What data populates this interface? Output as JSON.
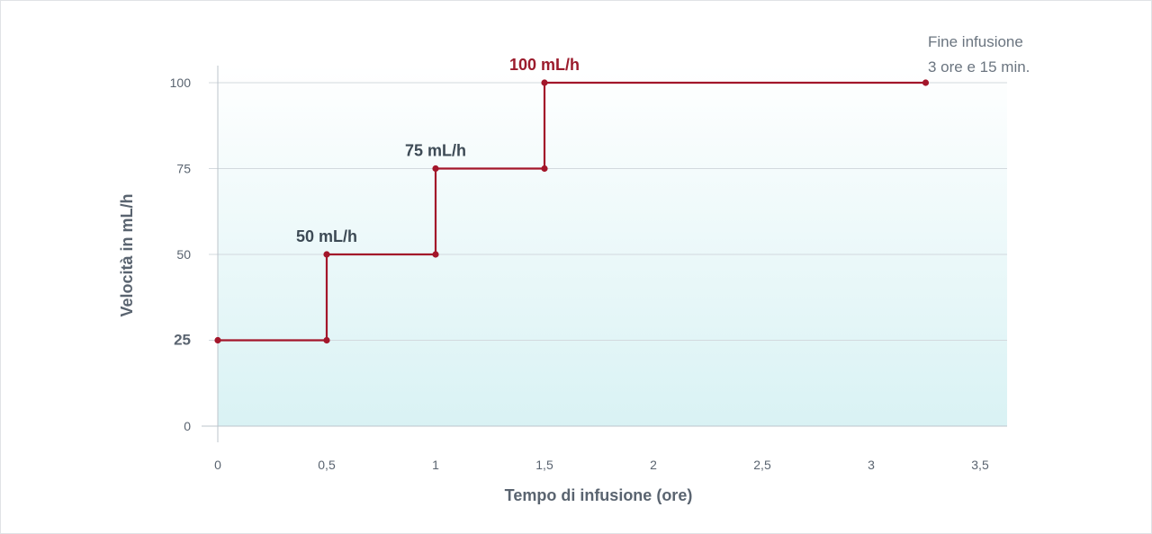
{
  "chart_data": {
    "type": "line",
    "step": true,
    "xlabel": "Tempo di infusione (ore)",
    "ylabel": "Velocità in mL/h",
    "xlim": [
      0,
      3.6
    ],
    "ylim": [
      0,
      100
    ],
    "x_ticks": [
      "0",
      "0,5",
      "1",
      "1,5",
      "2",
      "2,5",
      "3",
      "3,5"
    ],
    "x_tick_values": [
      0,
      0.5,
      1,
      1.5,
      2,
      2.5,
      3,
      3.5
    ],
    "y_ticks": [
      "0",
      "25",
      "50",
      "75",
      "100"
    ],
    "y_tick_values": [
      0,
      25,
      50,
      75,
      100
    ],
    "y_tick_emphasis": "25",
    "grid": "horizontal",
    "series": [
      {
        "points": [
          {
            "x": 0,
            "y": 25
          },
          {
            "x": 0.5,
            "y": 25
          },
          {
            "x": 0.5,
            "y": 50
          },
          {
            "x": 1,
            "y": 50
          },
          {
            "x": 1,
            "y": 75
          },
          {
            "x": 1.5,
            "y": 75
          },
          {
            "x": 1.5,
            "y": 100
          },
          {
            "x": 3.25,
            "y": 100
          }
        ],
        "color": "#a3162a"
      }
    ],
    "annotations": [
      {
        "text": "50 mL/h",
        "x": 0.5,
        "y": 50,
        "emphasis": false
      },
      {
        "text": "75 mL/h",
        "x": 1,
        "y": 75,
        "emphasis": false
      },
      {
        "text": "100 mL/h",
        "x": 1.5,
        "y": 100,
        "emphasis": true
      }
    ],
    "end_note": [
      "Fine infusione",
      "3 ore e 15 min."
    ],
    "colors": {
      "line": "#a3162a",
      "accent_text": "#9b1b2c",
      "text": "#5a6470",
      "grid": "#d3d9de",
      "fill_top": "#ffffff",
      "fill_bottom": "#d9f2f4"
    }
  }
}
